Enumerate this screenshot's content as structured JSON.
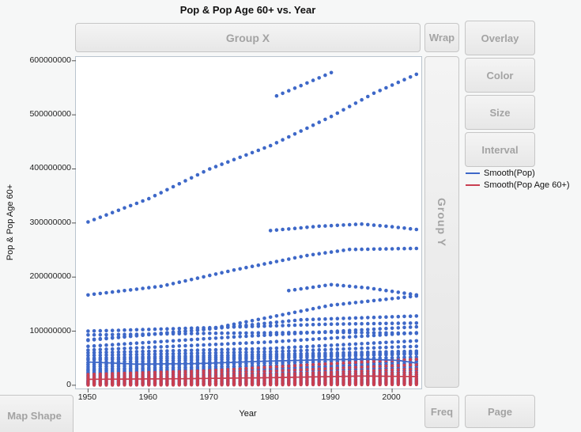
{
  "title": "Pop & Pop Age 60+  vs. Year",
  "drop_zones": {
    "group_x": "Group X",
    "wrap": "Wrap",
    "overlay": "Overlay",
    "color": "Color",
    "size": "Size",
    "interval": "Interval",
    "group_y": "Group Y",
    "map_shape": "Map Shape",
    "freq": "Freq",
    "page": "Page"
  },
  "legend": [
    {
      "label": "Smooth(Pop)",
      "color": "#3e68c8"
    },
    {
      "label": "Smooth(Pop Age 60+)",
      "color": "#c93f51"
    }
  ],
  "axes": {
    "x_label": "Year",
    "y_label": "Pop & Pop Age 60+",
    "x_ticks": [
      1950,
      1960,
      1970,
      1980,
      1990,
      2000
    ],
    "y_ticks": [
      0,
      100000000,
      200000000,
      300000000,
      400000000,
      500000000,
      600000000
    ],
    "x_range": [
      1948,
      2004.8
    ],
    "y_range": [
      -6000000,
      607000000
    ]
  },
  "chart_data": {
    "type": "scatter",
    "title": "Pop & Pop Age 60+ vs. Year",
    "xlabel": "Year",
    "ylabel": "Pop & Pop Age 60+",
    "x_sampling_step_years": 1,
    "value_unit": "persons (anchors given in millions)",
    "colors": {
      "pop": "#3e68c8",
      "pop60": "#c93f51"
    },
    "series": [
      {
        "name": "pop-01",
        "group": "pop",
        "anchors": [
          [
            1950,
            302
          ],
          [
            1960,
            345
          ],
          [
            1970,
            400
          ],
          [
            1980,
            443
          ],
          [
            1990,
            497
          ],
          [
            1997,
            540
          ],
          [
            2004,
            575
          ]
        ]
      },
      {
        "name": "pop-02",
        "group": "pop",
        "anchors": [
          [
            1981,
            535
          ],
          [
            1990,
            578
          ]
        ]
      },
      {
        "name": "pop-03",
        "group": "pop",
        "anchors": [
          [
            1980,
            286
          ],
          [
            1988,
            294
          ],
          [
            1995,
            298
          ],
          [
            2000,
            293
          ],
          [
            2004,
            288
          ]
        ]
      },
      {
        "name": "pop-04",
        "group": "pop",
        "anchors": [
          [
            1950,
            167
          ],
          [
            1962,
            183
          ],
          [
            1974,
            213
          ],
          [
            1986,
            240
          ],
          [
            1993,
            251
          ],
          [
            2004,
            253
          ]
        ]
      },
      {
        "name": "pop-05",
        "group": "pop",
        "anchors": [
          [
            1983,
            175
          ],
          [
            1990,
            186
          ],
          [
            1996,
            180
          ],
          [
            2004,
            167
          ]
        ]
      },
      {
        "name": "pop-06",
        "group": "pop",
        "anchors": [
          [
            1950,
            93
          ],
          [
            1970,
            96
          ],
          [
            1990,
            98
          ],
          [
            2004,
            96
          ]
        ]
      },
      {
        "name": "pop-07",
        "group": "pop",
        "anchors": [
          [
            1950,
            84
          ],
          [
            1970,
            104
          ],
          [
            1990,
            148
          ],
          [
            2004,
            165
          ]
        ]
      },
      {
        "name": "pop-08",
        "group": "pop",
        "anchors": [
          [
            1950,
            83
          ],
          [
            1970,
            104
          ],
          [
            1985,
            121
          ],
          [
            2004,
            128
          ]
        ]
      },
      {
        "name": "pop-09",
        "group": "pop",
        "anchors": [
          [
            1950,
            100
          ],
          [
            1975,
            108
          ],
          [
            1990,
            113
          ],
          [
            2004,
            115
          ]
        ]
      },
      {
        "name": "pop-10",
        "group": "pop",
        "anchors": [
          [
            1950,
            72
          ],
          [
            1975,
            90
          ],
          [
            2004,
            108
          ]
        ]
      },
      {
        "name": "pop-11",
        "group": "pop",
        "anchors": [
          [
            1950,
            65
          ],
          [
            1980,
            80
          ],
          [
            2004,
            97
          ]
        ]
      },
      {
        "name": "pop-12",
        "group": "pop",
        "anchors": [
          [
            1950,
            60
          ],
          [
            1980,
            68
          ],
          [
            2004,
            82
          ]
        ]
      },
      {
        "name": "pop-13",
        "group": "pop",
        "anchors": [
          [
            1950,
            55
          ],
          [
            1980,
            62
          ],
          [
            2004,
            72
          ]
        ]
      },
      {
        "name": "pop-14",
        "group": "pop",
        "anchors": [
          [
            1950,
            50
          ],
          [
            1980,
            57
          ],
          [
            2004,
            63
          ]
        ]
      },
      {
        "name": "pop-15",
        "group": "pop",
        "anchors": [
          [
            1950,
            47
          ],
          [
            1975,
            52
          ],
          [
            2004,
            60
          ]
        ]
      },
      {
        "name": "pop-16",
        "group": "pop",
        "anchors": [
          [
            1950,
            42
          ],
          [
            1980,
            50
          ],
          [
            2004,
            58
          ]
        ]
      },
      {
        "name": "pop-17",
        "group": "pop",
        "anchors": [
          [
            1950,
            38
          ],
          [
            1980,
            45
          ],
          [
            2004,
            52
          ]
        ]
      },
      {
        "name": "pop-18",
        "group": "pop",
        "anchors": [
          [
            1950,
            34
          ],
          [
            1980,
            41
          ],
          [
            2004,
            48
          ]
        ]
      },
      {
        "name": "pop-19",
        "group": "pop",
        "anchors": [
          [
            1950,
            30
          ],
          [
            1980,
            36
          ],
          [
            2004,
            44
          ]
        ]
      },
      {
        "name": "pop-20",
        "group": "pop",
        "anchors": [
          [
            1950,
            27
          ],
          [
            1980,
            32
          ],
          [
            2004,
            40
          ]
        ]
      },
      {
        "name": "pop-21",
        "group": "pop",
        "anchors": [
          [
            1950,
            24
          ],
          [
            1980,
            29
          ],
          [
            2004,
            36
          ]
        ]
      },
      {
        "name": "pop-22",
        "group": "pop",
        "anchors": [
          [
            1950,
            21
          ],
          [
            1980,
            26
          ],
          [
            2004,
            32
          ]
        ]
      },
      {
        "name": "pop-23",
        "group": "pop",
        "anchors": [
          [
            1950,
            18
          ],
          [
            1980,
            22
          ],
          [
            2004,
            28
          ]
        ]
      },
      {
        "name": "pop-24",
        "group": "pop",
        "anchors": [
          [
            1950,
            15
          ],
          [
            1980,
            19
          ],
          [
            2004,
            24
          ]
        ]
      },
      {
        "name": "pop-25",
        "group": "pop",
        "anchors": [
          [
            1950,
            12
          ],
          [
            1980,
            16
          ],
          [
            2004,
            20
          ]
        ]
      },
      {
        "name": "pop-26",
        "group": "pop",
        "anchors": [
          [
            1950,
            9
          ],
          [
            1980,
            12
          ],
          [
            2004,
            16
          ]
        ]
      },
      {
        "name": "pop-27",
        "group": "pop",
        "anchors": [
          [
            1950,
            7
          ],
          [
            1980,
            9
          ],
          [
            2004,
            12
          ]
        ]
      },
      {
        "name": "pop-28",
        "group": "pop",
        "anchors": [
          [
            1950,
            5
          ],
          [
            1980,
            6.5
          ],
          [
            2004,
            9
          ]
        ]
      },
      {
        "name": "pop-29",
        "group": "pop",
        "anchors": [
          [
            1950,
            3
          ],
          [
            1980,
            4
          ],
          [
            2004,
            6
          ]
        ]
      },
      {
        "name": "pop-30",
        "group": "pop",
        "anchors": [
          [
            1950,
            1.5
          ],
          [
            1980,
            2
          ],
          [
            2004,
            3
          ]
        ]
      },
      {
        "name": "pop60-01",
        "group": "pop60",
        "anchors": [
          [
            1950,
            20
          ],
          [
            1970,
            27
          ],
          [
            1990,
            40
          ],
          [
            2004,
            48
          ]
        ]
      },
      {
        "name": "pop60-02",
        "group": "pop60",
        "anchors": [
          [
            1950,
            16
          ],
          [
            1980,
            26
          ],
          [
            2004,
            38
          ]
        ]
      },
      {
        "name": "pop60-03",
        "group": "pop60",
        "anchors": [
          [
            1950,
            13
          ],
          [
            1980,
            20
          ],
          [
            2004,
            30
          ]
        ]
      },
      {
        "name": "pop60-04",
        "group": "pop60",
        "anchors": [
          [
            1950,
            11
          ],
          [
            1980,
            16
          ],
          [
            2004,
            24
          ]
        ]
      },
      {
        "name": "pop60-05",
        "group": "pop60",
        "anchors": [
          [
            1950,
            9
          ],
          [
            1980,
            13
          ],
          [
            2004,
            19
          ]
        ]
      },
      {
        "name": "pop60-06",
        "group": "pop60",
        "anchors": [
          [
            1950,
            7.5
          ],
          [
            1980,
            11
          ],
          [
            2004,
            16
          ]
        ]
      },
      {
        "name": "pop60-07",
        "group": "pop60",
        "anchors": [
          [
            1950,
            6
          ],
          [
            1980,
            9
          ],
          [
            2004,
            13
          ]
        ]
      },
      {
        "name": "pop60-08",
        "group": "pop60",
        "anchors": [
          [
            1950,
            5
          ],
          [
            1980,
            7
          ],
          [
            2004,
            10.5
          ]
        ]
      },
      {
        "name": "pop60-09",
        "group": "pop60",
        "anchors": [
          [
            1950,
            4
          ],
          [
            1980,
            5.5
          ],
          [
            2004,
            8.5
          ]
        ]
      },
      {
        "name": "pop60-10",
        "group": "pop60",
        "anchors": [
          [
            1950,
            3
          ],
          [
            1980,
            4.5
          ],
          [
            2004,
            7
          ]
        ]
      },
      {
        "name": "pop60-11",
        "group": "pop60",
        "anchors": [
          [
            1950,
            2.2
          ],
          [
            1980,
            3.5
          ],
          [
            2004,
            5.5
          ]
        ]
      },
      {
        "name": "pop60-12",
        "group": "pop60",
        "anchors": [
          [
            1950,
            1.5
          ],
          [
            1980,
            2.5
          ],
          [
            2004,
            4
          ]
        ]
      },
      {
        "name": "pop60-13",
        "group": "pop60",
        "anchors": [
          [
            1950,
            0.8
          ],
          [
            1980,
            1.5
          ],
          [
            2004,
            2.5
          ]
        ]
      },
      {
        "name": "pop60-14",
        "group": "pop60",
        "anchors": [
          [
            1950,
            0.3
          ],
          [
            1980,
            0.7
          ],
          [
            2004,
            1.2
          ]
        ]
      }
    ],
    "smoothers": [
      {
        "name": "Smooth(Pop)",
        "group": "pop",
        "anchors": [
          [
            1950,
            43
          ],
          [
            1958,
            39
          ],
          [
            1968,
            40
          ],
          [
            1978,
            44
          ],
          [
            1988,
            47
          ],
          [
            1996,
            48
          ],
          [
            2001,
            46
          ],
          [
            2004,
            41
          ]
        ]
      },
      {
        "name": "Smooth(Pop Age 60+)",
        "group": "pop60",
        "anchors": [
          [
            1950,
            11
          ],
          [
            1965,
            12
          ],
          [
            1980,
            14
          ],
          [
            1995,
            17
          ],
          [
            2004,
            16
          ]
        ]
      }
    ]
  }
}
